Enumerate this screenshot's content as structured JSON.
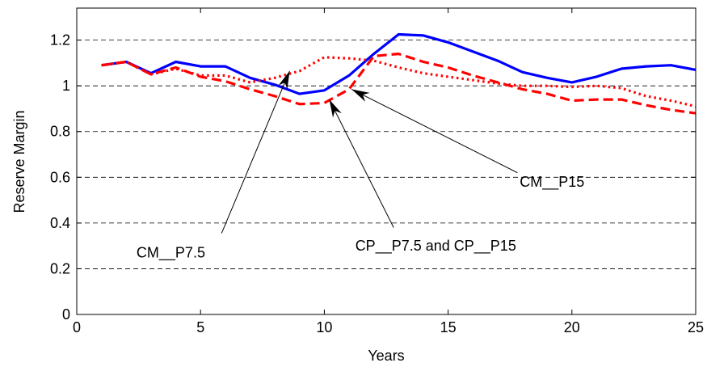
{
  "chart_data": {
    "type": "line",
    "title": "",
    "xlabel": "Years",
    "ylabel": "Reserve Margin",
    "xlim": [
      0,
      25
    ],
    "ylim": [
      0,
      1.34
    ],
    "xticks": [
      0,
      5,
      10,
      15,
      20,
      25
    ],
    "xtick_labels": [
      "0",
      "5",
      "10",
      "15",
      "20",
      "25"
    ],
    "yticks": [
      0,
      0.2,
      0.4,
      0.6,
      0.8,
      1,
      1.2
    ],
    "ytick_labels": [
      "0",
      "0.2",
      "0.4",
      "0.6",
      "0.8",
      "1",
      "1.2"
    ],
    "grid": "horizontal dashed",
    "series": [
      {
        "style": "solid",
        "color": "#0000ff",
        "x": [
          1,
          2,
          3,
          4,
          5,
          6,
          7,
          8,
          9,
          10,
          11,
          12,
          13,
          14,
          15,
          16,
          17,
          18,
          19,
          20,
          21,
          22,
          23,
          24,
          25
        ],
        "y": [
          1.09,
          1.105,
          1.055,
          1.105,
          1.085,
          1.085,
          1.035,
          1.005,
          0.965,
          0.98,
          1.045,
          1.14,
          1.225,
          1.22,
          1.19,
          1.15,
          1.11,
          1.06,
          1.035,
          1.015,
          1.04,
          1.075,
          1.085,
          1.09,
          1.07
        ]
      },
      {
        "style": "dotted",
        "color": "#ff0000",
        "x": [
          1,
          2,
          3,
          4,
          5,
          6,
          7,
          8,
          9,
          10,
          11,
          12,
          13,
          14,
          15,
          16,
          17,
          18,
          19,
          20,
          21,
          22,
          23,
          24,
          25
        ],
        "y": [
          1.09,
          1.105,
          1.05,
          1.075,
          1.045,
          1.045,
          1.015,
          1.035,
          1.065,
          1.125,
          1.12,
          1.11,
          1.08,
          1.055,
          1.04,
          1.025,
          1.01,
          1.0,
          1.0,
          0.995,
          1.0,
          0.99,
          0.955,
          0.935,
          0.91
        ]
      },
      {
        "style": "dashed",
        "color": "#ff0000",
        "x": [
          1,
          2,
          3,
          4,
          5,
          6,
          7,
          8,
          9,
          10,
          11,
          12,
          13,
          14,
          15,
          16,
          17,
          18,
          19,
          20,
          21,
          22,
          23,
          24,
          25
        ],
        "y": [
          1.09,
          1.105,
          1.05,
          1.08,
          1.04,
          1.02,
          0.985,
          0.955,
          0.92,
          0.925,
          0.985,
          1.13,
          1.14,
          1.105,
          1.08,
          1.045,
          1.015,
          0.985,
          0.965,
          0.935,
          0.94,
          0.94,
          0.915,
          0.895,
          0.88
        ]
      }
    ],
    "annotations": [
      {
        "text": "CM__P7.5",
        "text_x": 3.8,
        "text_y": 0.27,
        "tail_x": 5.85,
        "tail_y": 0.355,
        "head_x": 8.6,
        "head_y": 1.065
      },
      {
        "text": "CP__P7.5 and CP__P15",
        "text_x": 14.5,
        "text_y": 0.3,
        "tail_x": 12.8,
        "tail_y": 0.38,
        "head_x": 10.2,
        "head_y": 0.94
      },
      {
        "text": "CM__P15",
        "text_x": 19.2,
        "text_y": 0.58,
        "tail_x": 17.8,
        "tail_y": 0.62,
        "head_x": 11.1,
        "head_y": 0.985
      }
    ]
  }
}
